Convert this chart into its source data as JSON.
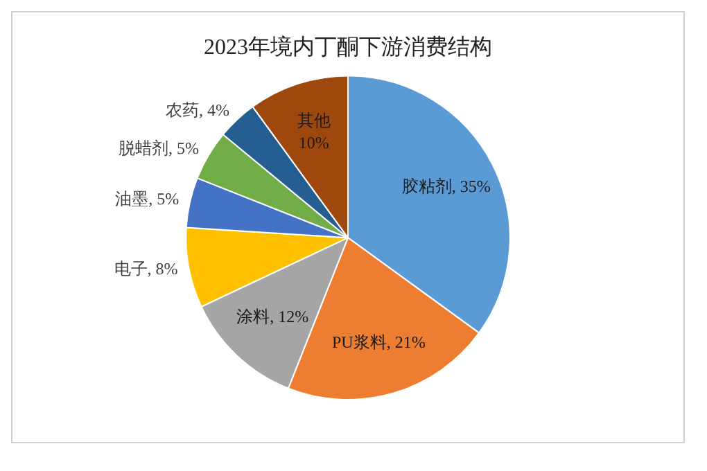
{
  "chart_data": {
    "type": "pie",
    "title": "2023年境内丁酮下游消费结构",
    "categories": [
      "胶粘剂",
      "PU浆料",
      "涂料",
      "电子",
      "油墨",
      "脱蜡剂",
      "农药",
      "其他"
    ],
    "values": [
      35,
      21,
      12,
      8,
      5,
      5,
      4,
      10
    ],
    "value_labels": [
      "35%",
      "21%",
      "12%",
      "8%",
      "5%",
      "5%",
      "4%",
      "10%"
    ],
    "colors": [
      "#5b9bd5",
      "#ed7d31",
      "#a5a5a5",
      "#ffc000",
      "#4472c4",
      "#70ad47",
      "#255e91",
      "#9e480e"
    ],
    "legend": false
  }
}
